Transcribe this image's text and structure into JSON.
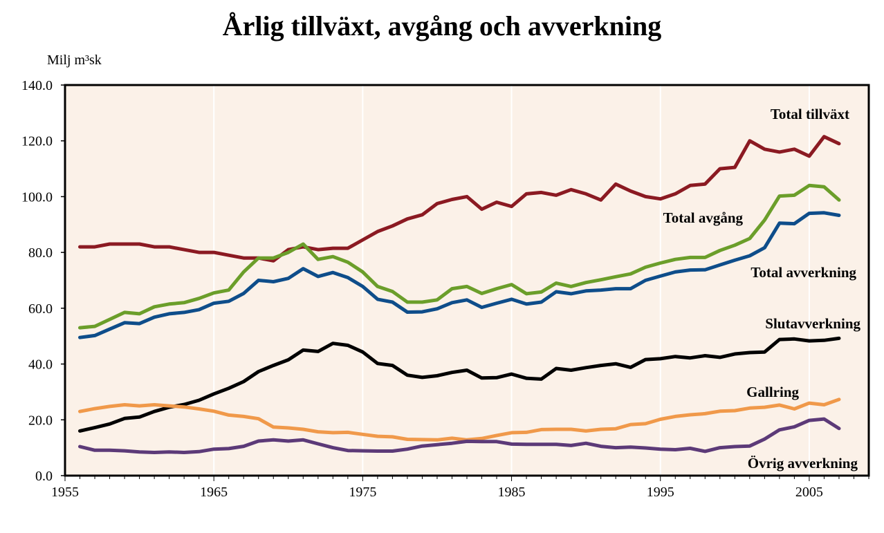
{
  "chart_data": {
    "type": "line",
    "title": "Årlig tillväxt, avgång och avverkning",
    "ylabel": "Milj m³sk",
    "xlabel": "",
    "ylim": [
      0,
      140
    ],
    "xlim": [
      1955,
      2009
    ],
    "y_ticks": [
      "0.0",
      "20.0",
      "40.0",
      "60.0",
      "80.0",
      "100.0",
      "120.0",
      "140.0"
    ],
    "x_ticks": [
      "1955",
      "1965",
      "1975",
      "1985",
      "1995",
      "2005"
    ],
    "grid": "vertical lines only",
    "plot_background": "#fbf1e8",
    "x": [
      1956,
      1957,
      1958,
      1959,
      1960,
      1961,
      1962,
      1963,
      1964,
      1965,
      1966,
      1967,
      1968,
      1969,
      1970,
      1971,
      1972,
      1973,
      1974,
      1975,
      1976,
      1977,
      1978,
      1979,
      1980,
      1981,
      1982,
      1983,
      1984,
      1985,
      1986,
      1987,
      1988,
      1989,
      1990,
      1991,
      1992,
      1993,
      1994,
      1995,
      1996,
      1997,
      1998,
      1999,
      2000,
      2001,
      2002,
      2003,
      2004,
      2005,
      2006,
      2007
    ],
    "series": [
      {
        "name": "Total tillväxt",
        "color": "#8b1a22",
        "values": [
          82,
          82,
          83,
          83,
          83,
          82,
          82,
          81,
          80,
          80,
          79,
          78,
          78,
          77,
          81,
          82,
          81,
          81.5,
          81.5,
          84.5,
          87.5,
          89.5,
          92,
          93.5,
          97.5,
          99,
          100,
          95.5,
          98,
          96.5,
          101,
          101.5,
          100.5,
          102.5,
          101,
          98.8,
          104.5,
          102,
          100,
          99.2,
          101,
          104,
          104.5,
          110,
          110.5,
          120,
          117,
          116,
          117,
          114.5,
          121.5,
          119
        ]
      },
      {
        "name": "Total avgång",
        "color": "#6b9e2a",
        "values": [
          53,
          53.5,
          56,
          58.5,
          58,
          60.5,
          61.5,
          62,
          63.5,
          65.5,
          66.5,
          73,
          78,
          78,
          80,
          83,
          77.5,
          78.5,
          76.5,
          73,
          67.8,
          66,
          62.2,
          62.2,
          63,
          67,
          67.8,
          65.3,
          67,
          68.5,
          65.2,
          65.8,
          69,
          67.8,
          69.2,
          70.2,
          71.3,
          72.3,
          74.7,
          76.2,
          77.5,
          78.2,
          78.2,
          80.7,
          82.6,
          85,
          91.6,
          100.2,
          100.5,
          104,
          103.5,
          98.8
        ]
      },
      {
        "name": "Total avverkning",
        "color": "#0e4d8a",
        "values": [
          49.5,
          50.2,
          52.5,
          54.8,
          54.5,
          56.8,
          58,
          58.5,
          59.5,
          61.8,
          62.5,
          65.3,
          70,
          69.5,
          70.7,
          74.2,
          71.4,
          72.8,
          71,
          67.8,
          63.2,
          62.2,
          58.6,
          58.7,
          59.8,
          62,
          63,
          60.3,
          61.8,
          63.2,
          61.5,
          62.2,
          65.9,
          65.2,
          66.2,
          66.5,
          67,
          67,
          70,
          71.5,
          73,
          73.7,
          73.8,
          75.5,
          77.2,
          78.8,
          81.7,
          90.5,
          90.3,
          94,
          94.2,
          93.3
        ]
      },
      {
        "name": "Slutavverkning",
        "color": "#000000",
        "values": [
          16,
          17.2,
          18.5,
          20.5,
          21,
          23,
          24.5,
          25.5,
          27,
          29.3,
          31.3,
          33.7,
          37.3,
          39.5,
          41.5,
          45,
          44.5,
          47.4,
          46.7,
          44.3,
          40.2,
          39.5,
          36,
          35.2,
          35.8,
          37,
          37.8,
          35,
          35.1,
          36.4,
          34.9,
          34.6,
          38.4,
          37.8,
          38.7,
          39.5,
          40.1,
          38.8,
          41.6,
          41.9,
          42.7,
          42.2,
          43,
          42.4,
          43.6,
          44.1,
          44.3,
          48.8,
          49,
          48.3,
          48.5,
          49.2
        ]
      },
      {
        "name": "Gallring",
        "color": "#f0994a",
        "values": [
          23,
          24,
          24.8,
          25.4,
          25,
          25.4,
          25,
          24.6,
          23.9,
          23.1,
          21.7,
          21.2,
          20.4,
          17.4,
          17.1,
          16.6,
          15.7,
          15.4,
          15.5,
          14.8,
          14.1,
          13.9,
          13,
          12.9,
          12.8,
          13.4,
          12.8,
          13.3,
          14.4,
          15.4,
          15.5,
          16.5,
          16.6,
          16.6,
          16,
          16.6,
          16.8,
          18.3,
          18.6,
          20.2,
          21.2,
          21.8,
          22.2,
          23.1,
          23.3,
          24.2,
          24.5,
          25.3,
          23.9,
          26,
          25.4,
          27.3
        ]
      },
      {
        "name": "Övrig avverkning",
        "color": "#5c3a78",
        "values": [
          10.4,
          9.1,
          9.1,
          8.9,
          8.5,
          8.3,
          8.5,
          8.3,
          8.6,
          9.5,
          9.7,
          10.5,
          12.4,
          12.8,
          12.4,
          12.8,
          11.4,
          10,
          9,
          8.9,
          8.8,
          8.8,
          9.5,
          10.6,
          11.1,
          11.6,
          12.3,
          12.2,
          12.2,
          11.3,
          11.2,
          11.2,
          11.2,
          10.8,
          11.6,
          10.5,
          10,
          10.2,
          9.9,
          9.5,
          9.3,
          9.8,
          8.7,
          10,
          10.4,
          10.6,
          13.1,
          16.4,
          17.5,
          19.8,
          20.3,
          16.9
        ]
      }
    ],
    "series_labels": [
      "Total tillväxt",
      "Total avgång",
      "Total avverkning",
      "Slutavverkning",
      "Gallring",
      "Övrig avverkning"
    ]
  }
}
